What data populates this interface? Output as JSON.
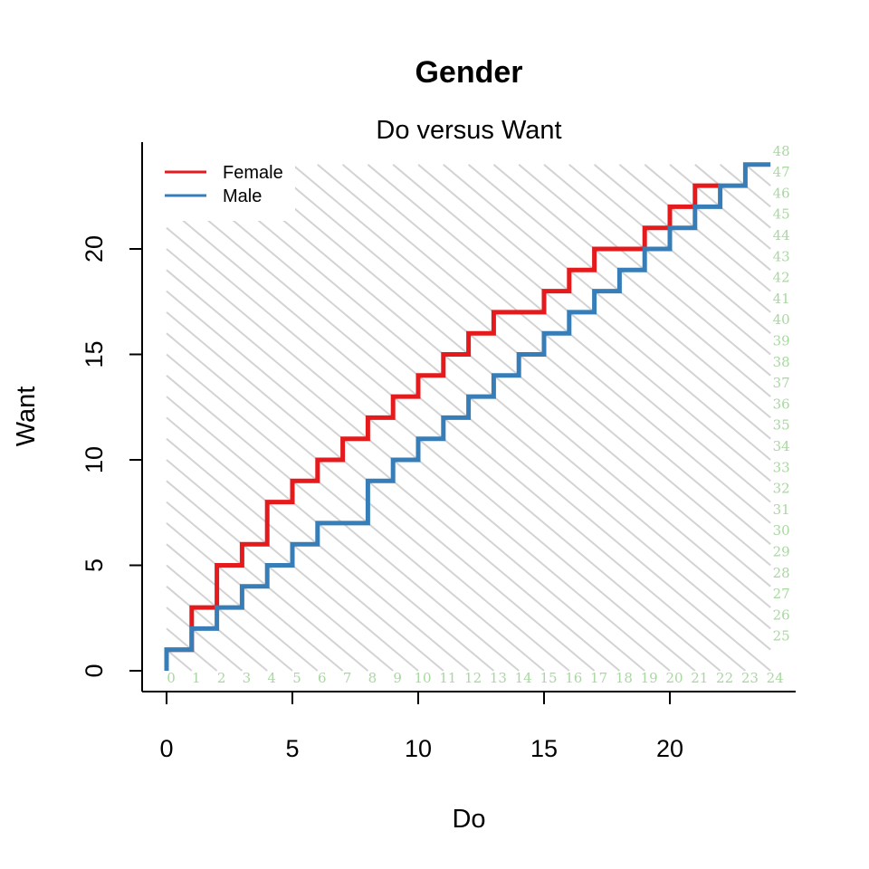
{
  "title": "Gender",
  "chart_data": {
    "type": "line",
    "subtitle": "Do versus Want",
    "xlabel": "Do",
    "ylabel": "Want",
    "xlim": [
      0,
      24
    ],
    "ylim": [
      0,
      24
    ],
    "x_ticks": [
      "0",
      "5",
      "10",
      "15",
      "20"
    ],
    "y_ticks": [
      "0",
      "5",
      "10",
      "15",
      "20"
    ],
    "sum_labels_bottom": [
      "0",
      "1",
      "2",
      "3",
      "4",
      "5",
      "6",
      "7",
      "8",
      "9",
      "10",
      "11",
      "12",
      "13",
      "14",
      "15",
      "16",
      "17",
      "18",
      "19",
      "20",
      "21",
      "22",
      "23",
      "24"
    ],
    "sum_labels_right": [
      "25",
      "26",
      "27",
      "28",
      "29",
      "30",
      "31",
      "32",
      "33",
      "34",
      "35",
      "36",
      "37",
      "38",
      "39",
      "40",
      "41",
      "42",
      "43",
      "44",
      "45",
      "46",
      "47",
      "48"
    ],
    "legend_position": "top-left",
    "grid": false,
    "series": [
      {
        "name": "Female",
        "color": "#e41a1c",
        "points": [
          [
            0,
            0
          ],
          [
            0,
            1
          ],
          [
            1,
            1
          ],
          [
            1,
            3
          ],
          [
            2,
            3
          ],
          [
            2,
            5
          ],
          [
            3,
            5
          ],
          [
            3,
            6
          ],
          [
            4,
            6
          ],
          [
            4,
            8
          ],
          [
            5,
            8
          ],
          [
            5,
            9
          ],
          [
            6,
            9
          ],
          [
            6,
            10
          ],
          [
            7,
            10
          ],
          [
            7,
            11
          ],
          [
            8,
            11
          ],
          [
            8,
            12
          ],
          [
            9,
            12
          ],
          [
            9,
            13
          ],
          [
            10,
            13
          ],
          [
            10,
            14
          ],
          [
            11,
            14
          ],
          [
            11,
            15
          ],
          [
            12,
            15
          ],
          [
            12,
            16
          ],
          [
            13,
            16
          ],
          [
            13,
            17
          ],
          [
            15,
            17
          ],
          [
            15,
            18
          ],
          [
            16,
            18
          ],
          [
            16,
            19
          ],
          [
            17,
            19
          ],
          [
            17,
            20
          ],
          [
            19,
            20
          ],
          [
            19,
            21
          ],
          [
            20,
            21
          ],
          [
            20,
            22
          ],
          [
            21,
            22
          ],
          [
            21,
            23
          ],
          [
            22,
            23
          ]
        ]
      },
      {
        "name": "Male",
        "color": "#377eb8",
        "points": [
          [
            0,
            0
          ],
          [
            0,
            1
          ],
          [
            1,
            1
          ],
          [
            1,
            2
          ],
          [
            2,
            2
          ],
          [
            2,
            3
          ],
          [
            3,
            3
          ],
          [
            3,
            4
          ],
          [
            4,
            4
          ],
          [
            4,
            5
          ],
          [
            5,
            5
          ],
          [
            5,
            6
          ],
          [
            6,
            6
          ],
          [
            6,
            7
          ],
          [
            8,
            7
          ],
          [
            8,
            9
          ],
          [
            9,
            9
          ],
          [
            9,
            10
          ],
          [
            10,
            10
          ],
          [
            10,
            11
          ],
          [
            11,
            11
          ],
          [
            11,
            12
          ],
          [
            12,
            12
          ],
          [
            12,
            13
          ],
          [
            13,
            13
          ],
          [
            13,
            14
          ],
          [
            14,
            14
          ],
          [
            14,
            15
          ],
          [
            15,
            15
          ],
          [
            15,
            16
          ],
          [
            16,
            16
          ],
          [
            16,
            17
          ],
          [
            17,
            17
          ],
          [
            17,
            18
          ],
          [
            18,
            18
          ],
          [
            18,
            19
          ],
          [
            19,
            19
          ],
          [
            19,
            20
          ],
          [
            20,
            20
          ],
          [
            20,
            21
          ],
          [
            21,
            21
          ],
          [
            21,
            22
          ],
          [
            22,
            22
          ],
          [
            22,
            23
          ],
          [
            23,
            23
          ],
          [
            23,
            24
          ],
          [
            24,
            24
          ]
        ]
      }
    ]
  }
}
